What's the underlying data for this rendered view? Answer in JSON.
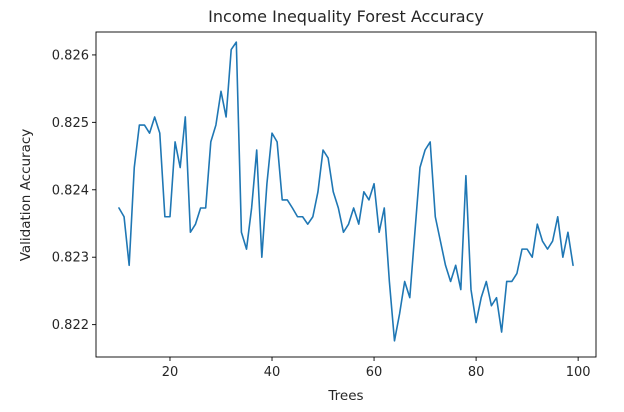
{
  "chart_data": {
    "type": "line",
    "title": "Income Inequality Forest Accuracy",
    "xlabel": "Trees",
    "ylabel": "Validation Accuracy",
    "xlim": [
      5.5,
      103.5
    ],
    "ylim": [
      0.82152,
      0.82634
    ],
    "xticks": [
      20,
      40,
      60,
      80,
      100
    ],
    "yticks": [
      0.822,
      0.823,
      0.824,
      0.825,
      0.826
    ],
    "xtick_labels": [
      "20",
      "40",
      "60",
      "80",
      "100"
    ],
    "ytick_labels": [
      "0.822",
      "0.823",
      "0.824",
      "0.825",
      "0.826"
    ],
    "grid": false,
    "line_color": "#1f77b4",
    "series": [
      {
        "x": [
          10,
          11,
          12,
          13,
          14,
          15,
          16,
          17,
          18,
          19,
          20,
          21,
          22,
          23,
          24,
          25,
          26,
          27,
          28,
          29,
          30,
          31,
          32,
          33,
          34,
          35,
          36,
          37,
          38,
          39,
          40,
          41,
          42,
          43,
          44,
          45,
          46,
          47,
          48,
          49,
          50,
          51,
          52,
          53,
          54,
          55,
          56,
          57,
          58,
          59,
          60,
          61,
          62,
          63,
          64,
          65,
          66,
          67,
          68,
          69,
          70,
          71,
          72,
          73,
          74,
          75,
          76,
          77,
          78,
          79,
          80,
          81,
          82,
          83,
          84,
          85,
          86,
          87,
          88,
          89,
          90,
          91,
          92,
          93,
          94,
          95,
          96,
          97,
          98,
          99
        ],
        "values": [
          0.82373,
          0.8236,
          0.82288,
          0.82433,
          0.82496,
          0.82496,
          0.82484,
          0.82508,
          0.82484,
          0.8236,
          0.8236,
          0.82471,
          0.82433,
          0.82508,
          0.82337,
          0.82349,
          0.82373,
          0.82373,
          0.82471,
          0.82496,
          0.82546,
          0.82508,
          0.82608,
          0.82619,
          0.82337,
          0.82312,
          0.82373,
          0.82459,
          0.823,
          0.82409,
          0.82484,
          0.82471,
          0.82385,
          0.82385,
          0.82373,
          0.8236,
          0.8236,
          0.82349,
          0.8236,
          0.82397,
          0.82459,
          0.82447,
          0.82397,
          0.82373,
          0.82337,
          0.82349,
          0.82373,
          0.82349,
          0.82397,
          0.82385,
          0.82409,
          0.82337,
          0.82373,
          0.82264,
          0.82176,
          0.82216,
          0.82264,
          0.8224,
          0.82337,
          0.82433,
          0.82459,
          0.82471,
          0.8236,
          0.82324,
          0.82288,
          0.82264,
          0.82288,
          0.82252,
          0.82421,
          0.82252,
          0.82203,
          0.8224,
          0.82264,
          0.82228,
          0.8224,
          0.82189,
          0.82264,
          0.82264,
          0.82276,
          0.82312,
          0.82312,
          0.823,
          0.82349,
          0.82324,
          0.82312,
          0.82324,
          0.8236,
          0.823,
          0.82337,
          0.82288
        ]
      }
    ]
  }
}
